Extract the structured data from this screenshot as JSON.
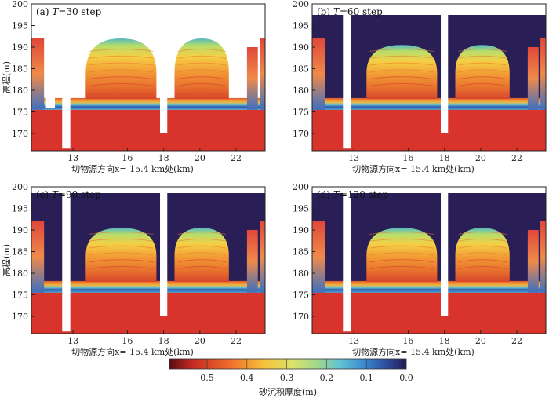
{
  "panels": [
    {
      "label_prefix": "(a) ",
      "label_var": "T",
      "label_suffix": "=30 step",
      "xlabel": "切物源方向x= 15.4 km处(km)",
      "ylabel": "高程(m)"
    },
    {
      "label_prefix": "(b) ",
      "label_var": "T",
      "label_suffix": "=60 step",
      "xlabel": "切物源方向x= 15.4 km处(km)",
      "ylabel": ""
    },
    {
      "label_prefix": "(c) ",
      "label_var": "T",
      "label_suffix": "=90 step",
      "xlabel": "切物源方向x= 15.4 km处(km)",
      "ylabel": "高程(m)"
    },
    {
      "label_prefix": "(d) ",
      "label_var": "T",
      "label_suffix": "=120 step",
      "xlabel": "切物源方向x= 15.4 km处(km)",
      "ylabel": ""
    }
  ],
  "colorbar": {
    "label": "砂沉积厚度(m)",
    "ticks": [
      "0.5",
      "0.4",
      "0.3",
      "0.2",
      "0.1",
      "0.0"
    ]
  },
  "chart_data": {
    "type": "heatmap",
    "x_ticks": [
      13,
      16,
      18,
      20,
      22
    ],
    "y_ticks": [
      170,
      175,
      180,
      185,
      190,
      195,
      200
    ],
    "xlim": [
      10.7,
      23.6
    ],
    "ylim": [
      166,
      200
    ],
    "colorscale_range": [
      0.0,
      0.55
    ],
    "colors": {
      "thick": "#d8342b",
      "mid": "#f4d93a",
      "green": "#a9d66a",
      "cyan": "#5ec4d4",
      "blue": "#3d6fc0",
      "thin": "#2a1e57"
    }
  }
}
